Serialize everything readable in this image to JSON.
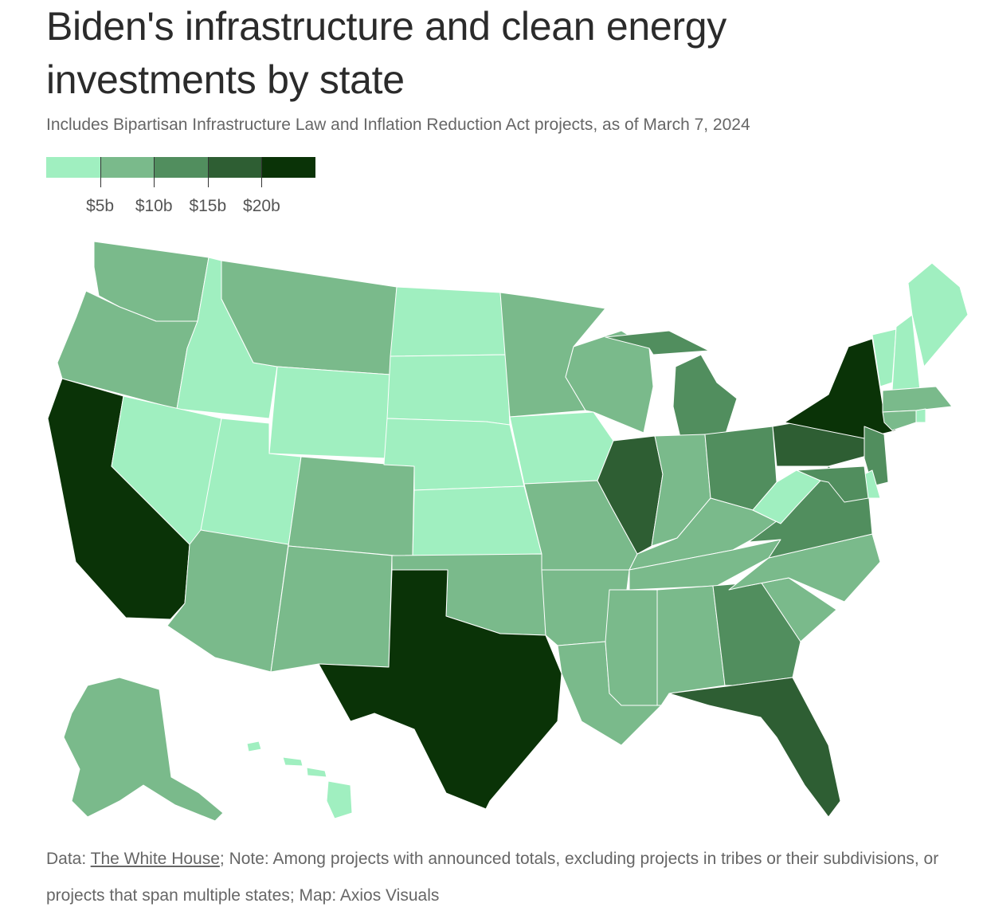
{
  "header": {
    "title": "Biden's infrastructure and clean energy investments by state",
    "subtitle": "Includes Bipartisan Infrastructure Law and Inflation Reduction Act projects, as of March 7, 2024"
  },
  "legend": {
    "colors": [
      "#a0efc0",
      "#7aba8b",
      "#518e5e",
      "#2e5e33",
      "#0a3307"
    ],
    "tick_labels": [
      "$5b",
      "$10b",
      "$15b",
      "$20b"
    ]
  },
  "footer": {
    "data_prefix": "Data: ",
    "data_source": "The White House",
    "note": "; Note: Among projects with announced totals, excluding projects in tribes or their subdivisions, or projects that span multiple states; Map: Axios Visuals"
  },
  "map_data": {
    "type": "choropleth",
    "bins": [
      "<$5b",
      "$5b-$10b",
      "$10b-$15b",
      "$15b-$20b",
      ">$20b"
    ],
    "state_bins": {
      "WA": 1,
      "OR": 1,
      "CA": 4,
      "ID": 0,
      "NV": 0,
      "MT": 1,
      "WY": 0,
      "UT": 0,
      "AZ": 1,
      "CO": 1,
      "NM": 1,
      "ND": 0,
      "SD": 0,
      "NE": 0,
      "KS": 0,
      "OK": 1,
      "TX": 4,
      "MN": 1,
      "IA": 0,
      "MO": 1,
      "AR": 1,
      "LA": 1,
      "WI": 1,
      "IL": 3,
      "MI": 2,
      "IN": 1,
      "OH": 2,
      "KY": 1,
      "TN": 1,
      "MS": 1,
      "AL": 1,
      "GA": 2,
      "FL": 3,
      "SC": 1,
      "NC": 1,
      "VA": 2,
      "WV": 0,
      "PA": 3,
      "NY": 4,
      "NJ": 2,
      "DE": 0,
      "MD": 2,
      "VT": 0,
      "NH": 0,
      "ME": 0,
      "MA": 1,
      "CT": 1,
      "RI": 0,
      "AK": 1,
      "HI": 0
    }
  }
}
